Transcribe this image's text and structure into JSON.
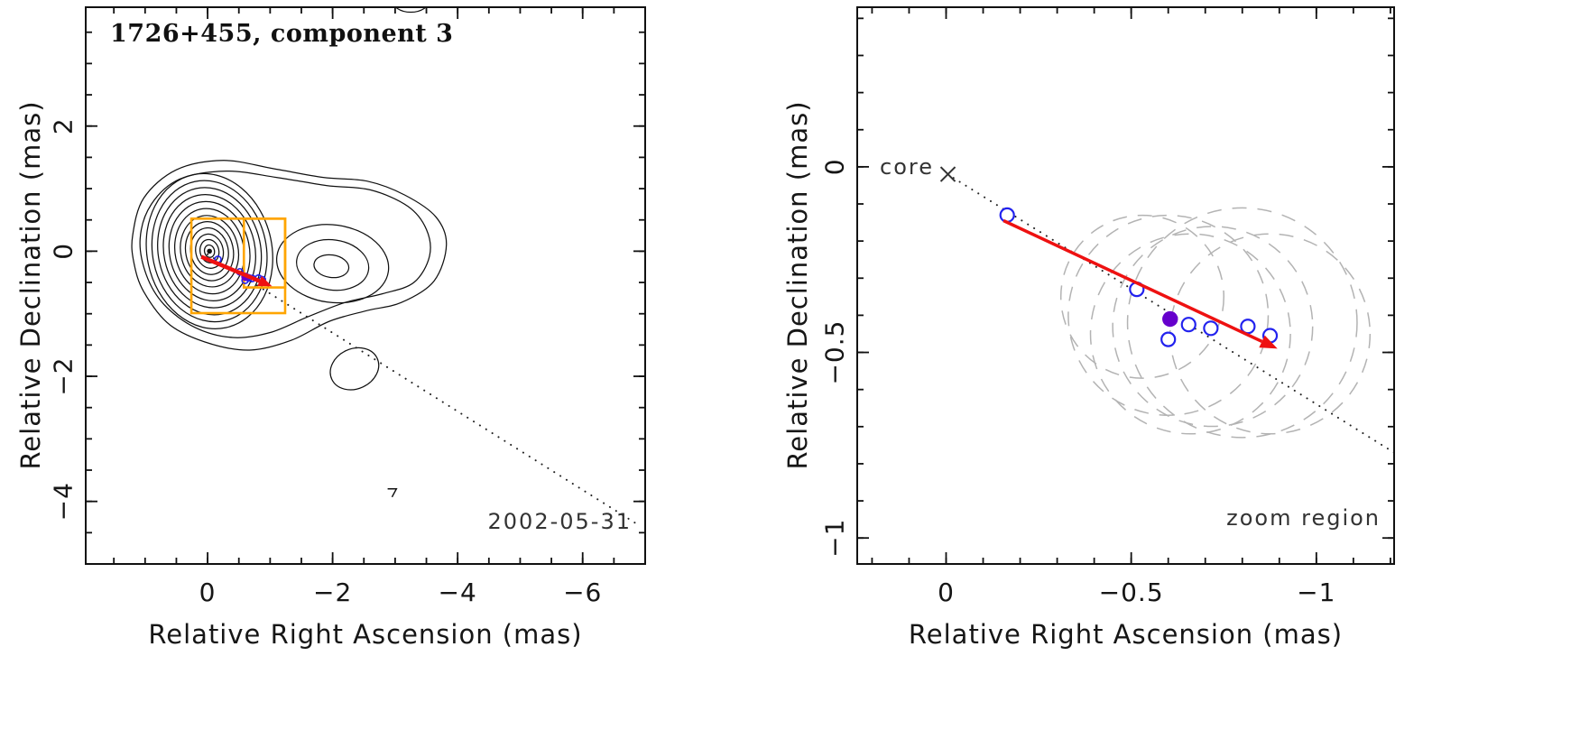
{
  "figure": {
    "background": "#ffffff",
    "panels": {
      "left": {
        "title": "1726+455, component 3",
        "date_label": "2002-05-31",
        "xlabel": "Relative Right Ascension (mas)",
        "ylabel": "Relative Declination (mas)"
      },
      "right": {
        "core_label": "core",
        "zoom_label": "zoom region",
        "xlabel": "Relative Right Ascension (mas)",
        "ylabel": "Relative Declination (mas)"
      }
    }
  },
  "colors": {
    "contour": "#111111",
    "points_open": "#2222ee",
    "point_filled": "#6600cc",
    "arrow": "#ee1111",
    "zoom_box": "#ffa500",
    "beam_circle": "#b3b3b3",
    "dotted_line": "#222222",
    "axis": "#111111"
  },
  "chart_data": [
    {
      "type": "contour_map",
      "panel": "left",
      "title": "1726+455, component 3",
      "epoch": "2002-05-31",
      "xlabel": "Relative Right Ascension (mas)",
      "ylabel": "Relative Declination (mas)",
      "xlim": [
        1.95,
        -7.0
      ],
      "ylim": [
        -5.0,
        3.9
      ],
      "xticks": [
        0,
        -2,
        -4,
        -6
      ],
      "xtick_labels": [
        "0",
        "−2",
        "−4",
        "−6"
      ],
      "yticks": [
        2,
        0,
        -2,
        -4
      ],
      "ytick_labels": [
        "2",
        "0",
        "−2",
        "−4"
      ],
      "xminor": 0.5,
      "yminor": 0.5,
      "core_contours": {
        "cx": -0.03,
        "cy": 0.0,
        "rot_deg": -12,
        "ry_over_rx": 1.25,
        "rx": [
          1.0,
          0.91,
          0.82,
          0.73,
          0.64,
          0.55,
          0.46,
          0.38,
          0.3,
          0.22,
          0.15,
          0.08
        ]
      },
      "envelopes": [
        [
          [
            1.2,
            0.25
          ],
          [
            1.02,
            0.85
          ],
          [
            0.5,
            1.3
          ],
          [
            -0.25,
            1.45
          ],
          [
            -1.05,
            1.32
          ],
          [
            -1.85,
            1.18
          ],
          [
            -2.55,
            1.12
          ],
          [
            -3.15,
            0.9
          ],
          [
            -3.65,
            0.55
          ],
          [
            -3.82,
            0.1
          ],
          [
            -3.62,
            -0.48
          ],
          [
            -3.1,
            -0.82
          ],
          [
            -2.55,
            -0.95
          ],
          [
            -1.95,
            -1.12
          ],
          [
            -1.35,
            -1.42
          ],
          [
            -0.7,
            -1.58
          ],
          [
            -0.05,
            -1.48
          ],
          [
            0.6,
            -1.18
          ],
          [
            1.02,
            -0.65
          ],
          [
            1.18,
            -0.18
          ]
        ],
        [
          [
            1.08,
            0.2
          ],
          [
            0.9,
            0.75
          ],
          [
            0.45,
            1.15
          ],
          [
            -0.3,
            1.28
          ],
          [
            -1.1,
            1.18
          ],
          [
            -1.9,
            1.05
          ],
          [
            -2.6,
            0.98
          ],
          [
            -3.2,
            0.72
          ],
          [
            -3.5,
            0.35
          ],
          [
            -3.55,
            -0.08
          ],
          [
            -3.3,
            -0.5
          ],
          [
            -2.8,
            -0.68
          ],
          [
            -2.2,
            -0.82
          ],
          [
            -1.6,
            -1.05
          ],
          [
            -1.0,
            -1.3
          ],
          [
            -0.4,
            -1.38
          ],
          [
            0.2,
            -1.22
          ],
          [
            0.7,
            -0.85
          ],
          [
            0.98,
            -0.38
          ]
        ]
      ],
      "jet_contours": [
        {
          "cx": -2.0,
          "cy": -0.2,
          "rx": 0.9,
          "ry": 0.62,
          "rot_deg": 8
        },
        {
          "cx": -2.0,
          "cy": -0.22,
          "rx": 0.58,
          "ry": 0.4,
          "rot_deg": 8
        },
        {
          "cx": -1.98,
          "cy": -0.24,
          "rx": 0.28,
          "ry": 0.18,
          "rot_deg": 8
        }
      ],
      "south_blob": {
        "cx": -2.35,
        "cy": -1.88,
        "rx": 0.4,
        "ry": 0.32,
        "rot_deg": -25
      },
      "top_arc": {
        "cx": -3.25,
        "cy": 4.02,
        "rx": 0.3,
        "ry": 0.2,
        "rot_deg": 0
      },
      "core_dot": {
        "cx": -0.03,
        "cy": 0.0,
        "r": 0.04
      },
      "noise_mark": [
        [
          -2.88,
          -3.8
        ],
        [
          -3.02,
          -3.8
        ],
        [
          -2.95,
          -3.93
        ]
      ],
      "dotted_line": {
        "x1": 0.0,
        "y1": -0.05,
        "x2": -6.85,
        "y2": -4.35
      },
      "zoom_boxes": [
        {
          "x1": 0.26,
          "y1": 0.52,
          "x2": -1.24,
          "y2": -0.99
        },
        {
          "x1": -0.58,
          "y1": 0.52,
          "x2": -1.24,
          "y2": -0.58
        }
      ],
      "points_open": [
        [
          -0.165,
          -0.13
        ],
        [
          -0.515,
          -0.33
        ],
        [
          -0.6,
          -0.465
        ],
        [
          -0.655,
          -0.425
        ],
        [
          -0.715,
          -0.435
        ],
        [
          -0.815,
          -0.43
        ],
        [
          -0.875,
          -0.455
        ]
      ],
      "point_filled": [
        -0.605,
        -0.41
      ],
      "arrow": {
        "x1": 0.1,
        "y1": -0.09,
        "x2": -1.03,
        "y2": -0.56
      }
    },
    {
      "type": "scatter",
      "panel": "right",
      "annotation": "zoom region",
      "xlabel": "Relative Right Ascension (mas)",
      "ylabel": "Relative Declination (mas)",
      "xlim": [
        0.24,
        -1.21
      ],
      "ylim": [
        -1.07,
        0.43
      ],
      "xticks": [
        0,
        -0.5,
        -1
      ],
      "xtick_labels": [
        "0",
        "−0.5",
        "−1"
      ],
      "yticks": [
        0,
        -0.5,
        -1
      ],
      "ytick_labels": [
        "0",
        "−0.5",
        "−1"
      ],
      "xminor": 0.1,
      "yminor": 0.1,
      "core_marker": {
        "x": -0.005,
        "y": -0.02,
        "label": "core"
      },
      "dotted_line": {
        "x1": -0.02,
        "y1": -0.03,
        "x2": -1.21,
        "y2": -0.77
      },
      "beam_circles": [
        {
          "cx": -0.6,
          "cy": -0.4,
          "r": 0.27
        },
        {
          "cx": -0.66,
          "cy": -0.45,
          "r": 0.27
        },
        {
          "cx": -0.72,
          "cy": -0.43,
          "r": 0.27
        },
        {
          "cx": -0.8,
          "cy": -0.42,
          "r": 0.31
        },
        {
          "cx": -0.875,
          "cy": -0.45,
          "r": 0.27
        },
        {
          "cx": -0.53,
          "cy": -0.35,
          "r": 0.22
        }
      ],
      "points_open": [
        [
          -0.165,
          -0.13
        ],
        [
          -0.515,
          -0.33
        ],
        [
          -0.6,
          -0.465
        ],
        [
          -0.655,
          -0.425
        ],
        [
          -0.715,
          -0.435
        ],
        [
          -0.815,
          -0.43
        ],
        [
          -0.875,
          -0.455
        ]
      ],
      "point_filled": [
        -0.605,
        -0.41
      ],
      "arrow": {
        "x1": -0.155,
        "y1": -0.145,
        "x2": -0.895,
        "y2": -0.49
      }
    }
  ]
}
